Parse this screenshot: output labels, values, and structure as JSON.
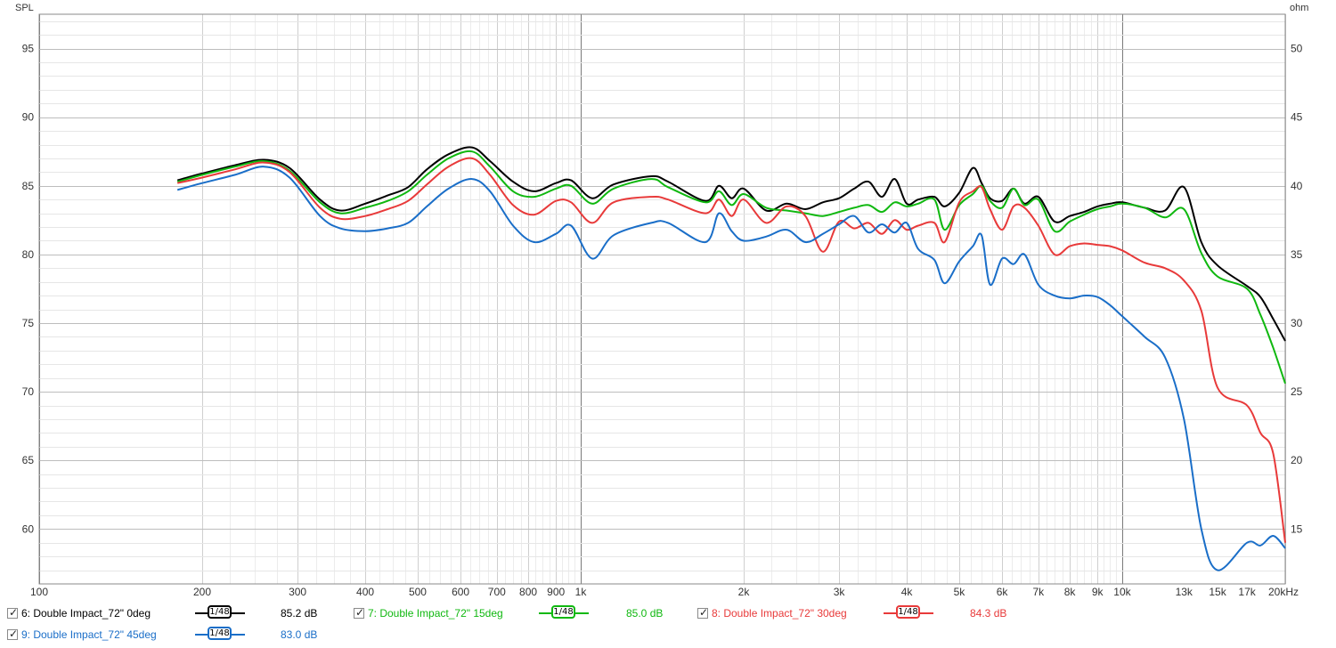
{
  "chart_data": {
    "type": "line",
    "y_left_label": "SPL",
    "y_right_label": "ohm",
    "x_scale": "log",
    "xlim": [
      100,
      20000
    ],
    "ylim_left": [
      56,
      97.5
    ],
    "ylim_right": [
      11,
      52.5
    ],
    "y_left_ticks": [
      60,
      65,
      70,
      75,
      80,
      85,
      90,
      95
    ],
    "y_right_ticks": [
      15,
      20,
      25,
      30,
      35,
      40,
      45,
      50
    ],
    "x_tick_labels": [
      {
        "v": 100,
        "t": "100"
      },
      {
        "v": 200,
        "t": "200"
      },
      {
        "v": 300,
        "t": "300"
      },
      {
        "v": 400,
        "t": "400"
      },
      {
        "v": 500,
        "t": "500"
      },
      {
        "v": 600,
        "t": "600"
      },
      {
        "v": 700,
        "t": "700"
      },
      {
        "v": 800,
        "t": "800"
      },
      {
        "v": 900,
        "t": "900"
      },
      {
        "v": 1000,
        "t": "1k"
      },
      {
        "v": 2000,
        "t": "2k"
      },
      {
        "v": 3000,
        "t": "3k"
      },
      {
        "v": 4000,
        "t": "4k"
      },
      {
        "v": 5000,
        "t": "5k"
      },
      {
        "v": 6000,
        "t": "6k"
      },
      {
        "v": 7000,
        "t": "7k"
      },
      {
        "v": 8000,
        "t": "8k"
      },
      {
        "v": 9000,
        "t": "9k"
      },
      {
        "v": 10000,
        "t": "10k"
      },
      {
        "v": 13000,
        "t": "13k"
      },
      {
        "v": 15000,
        "t": "15k"
      },
      {
        "v": 17000,
        "t": "17k"
      },
      {
        "v": 20000,
        "t": "20kHz"
      }
    ],
    "grid": true,
    "series": [
      {
        "name": "6: Double Impact_72\" 0deg",
        "color": "#000000",
        "x": [
          180,
          200,
          230,
          260,
          290,
          330,
          360,
          400,
          440,
          480,
          520,
          570,
          630,
          680,
          750,
          820,
          900,
          960,
          1050,
          1150,
          1350,
          1450,
          1700,
          1800,
          1900,
          2000,
          2200,
          2400,
          2600,
          2800,
          3000,
          3200,
          3400,
          3600,
          3800,
          4000,
          4200,
          4500,
          4700,
          5000,
          5300,
          5500,
          5700,
          6000,
          6300,
          6600,
          7000,
          7500,
          8000,
          8500,
          9000,
          9500,
          10000,
          11000,
          12000,
          13000,
          14000,
          15000,
          17000,
          18000,
          19000,
          20000
        ],
        "y": [
          85.4,
          85.9,
          86.5,
          86.9,
          86.3,
          84.0,
          83.2,
          83.7,
          84.3,
          84.9,
          86.2,
          87.3,
          87.8,
          86.8,
          85.3,
          84.6,
          85.2,
          85.4,
          84.1,
          85.1,
          85.7,
          85.3,
          83.9,
          85.0,
          84.1,
          84.8,
          83.2,
          83.7,
          83.3,
          83.8,
          84.1,
          84.8,
          85.3,
          84.2,
          85.5,
          83.7,
          84.0,
          84.2,
          83.5,
          84.5,
          86.3,
          85.2,
          84.1,
          83.9,
          84.8,
          83.7,
          84.2,
          82.4,
          82.8,
          83.1,
          83.5,
          83.7,
          83.8,
          83.4,
          83.2,
          84.9,
          80.9,
          79.2,
          77.7,
          76.9,
          75.3,
          73.7
        ]
      },
      {
        "name": "7: Double Impact_72\" 15deg",
        "color": "#10b810",
        "x": [
          180,
          200,
          230,
          260,
          290,
          330,
          360,
          400,
          440,
          480,
          520,
          570,
          630,
          680,
          750,
          820,
          900,
          960,
          1050,
          1150,
          1350,
          1450,
          1700,
          1800,
          1900,
          2000,
          2200,
          2400,
          2600,
          2800,
          3000,
          3200,
          3400,
          3600,
          3800,
          4000,
          4200,
          4500,
          4700,
          5000,
          5300,
          5500,
          5700,
          6000,
          6300,
          6600,
          7000,
          7500,
          8000,
          8500,
          9000,
          9500,
          10000,
          11000,
          12000,
          13000,
          14000,
          15000,
          17000,
          18000,
          19000,
          20000
        ],
        "y": [
          85.3,
          85.8,
          86.4,
          86.8,
          86.1,
          83.8,
          83.0,
          83.4,
          83.9,
          84.6,
          85.8,
          87.0,
          87.5,
          86.4,
          84.6,
          84.2,
          84.8,
          85.0,
          83.7,
          84.8,
          85.5,
          84.9,
          83.8,
          84.6,
          83.6,
          84.4,
          83.4,
          83.2,
          83.0,
          82.8,
          83.1,
          83.4,
          83.6,
          83.1,
          83.8,
          83.5,
          83.7,
          84.0,
          81.8,
          83.6,
          84.4,
          85.0,
          83.9,
          83.4,
          84.8,
          83.6,
          84.0,
          81.7,
          82.4,
          82.9,
          83.3,
          83.5,
          83.7,
          83.4,
          82.7,
          83.3,
          80.1,
          78.4,
          77.5,
          75.6,
          73.2,
          70.6
        ]
      },
      {
        "name": "8: Double Impact_72\" 30deg",
        "color": "#e83a3a",
        "x": [
          180,
          200,
          230,
          260,
          290,
          330,
          360,
          400,
          440,
          480,
          520,
          570,
          630,
          680,
          750,
          820,
          900,
          960,
          1050,
          1150,
          1350,
          1450,
          1700,
          1800,
          1900,
          2000,
          2200,
          2400,
          2600,
          2800,
          3000,
          3200,
          3400,
          3600,
          3800,
          4000,
          4200,
          4500,
          4700,
          5000,
          5300,
          5500,
          5700,
          6000,
          6300,
          6600,
          7000,
          7500,
          8000,
          8500,
          9000,
          9500,
          10000,
          11000,
          12000,
          13000,
          14000,
          15000,
          17000,
          18000,
          19000,
          20000
        ],
        "y": [
          85.2,
          85.6,
          86.2,
          86.7,
          86.0,
          83.4,
          82.6,
          82.8,
          83.3,
          83.9,
          85.1,
          86.4,
          87.0,
          85.8,
          83.6,
          82.9,
          83.9,
          83.8,
          82.3,
          83.8,
          84.2,
          84.0,
          83.0,
          84.0,
          82.8,
          84.0,
          82.3,
          83.5,
          82.8,
          80.2,
          82.4,
          81.9,
          82.3,
          81.5,
          82.5,
          81.8,
          82.1,
          82.3,
          80.9,
          83.8,
          84.6,
          84.9,
          83.3,
          81.8,
          83.5,
          83.4,
          82.1,
          80.0,
          80.6,
          80.8,
          80.7,
          80.6,
          80.3,
          79.4,
          79.0,
          78.1,
          75.9,
          70.3,
          69.0,
          67.0,
          65.5,
          59.0
        ]
      },
      {
        "name": "9: Double Impact_72\" 45deg",
        "color": "#1a6ec8",
        "x": [
          180,
          200,
          230,
          260,
          290,
          330,
          360,
          400,
          440,
          480,
          520,
          570,
          630,
          680,
          750,
          820,
          900,
          960,
          1050,
          1150,
          1350,
          1450,
          1700,
          1800,
          1900,
          2000,
          2200,
          2400,
          2600,
          2800,
          3000,
          3200,
          3400,
          3600,
          3800,
          4000,
          4200,
          4500,
          4700,
          5000,
          5300,
          5500,
          5700,
          6000,
          6300,
          6600,
          7000,
          7500,
          8000,
          8500,
          9000,
          9500,
          10000,
          11000,
          12000,
          13000,
          14000,
          15000,
          17000,
          18000,
          19000,
          20000
        ],
        "y": [
          84.7,
          85.2,
          85.8,
          86.4,
          85.6,
          82.8,
          81.9,
          81.7,
          81.9,
          82.3,
          83.5,
          84.8,
          85.5,
          84.6,
          82.1,
          80.9,
          81.5,
          82.1,
          79.7,
          81.4,
          82.3,
          82.3,
          80.9,
          83.0,
          81.7,
          81.0,
          81.3,
          81.8,
          80.9,
          81.5,
          82.2,
          82.8,
          81.6,
          82.2,
          81.6,
          82.3,
          80.4,
          79.6,
          77.9,
          79.5,
          80.6,
          81.4,
          77.8,
          79.7,
          79.3,
          80.0,
          77.8,
          77.0,
          76.8,
          77.0,
          76.9,
          76.3,
          75.5,
          74.0,
          72.5,
          68.0,
          60.0,
          57.0,
          59.0,
          58.8,
          59.5,
          58.6
        ]
      }
    ]
  },
  "legend": [
    {
      "checked": true,
      "label": "6: Double Impact_72\" 0deg",
      "smoothing": "1/48",
      "value": "85.2 dB",
      "color": "#000000"
    },
    {
      "checked": true,
      "label": "7: Double Impact_72\" 15deg",
      "smoothing": "1/48",
      "value": "85.0 dB",
      "color": "#10b810"
    },
    {
      "checked": true,
      "label": "8: Double Impact_72\" 30deg",
      "smoothing": "1/48",
      "value": "84.3 dB",
      "color": "#e83a3a"
    },
    {
      "checked": true,
      "label": "9: Double Impact_72\" 45deg",
      "smoothing": "1/48",
      "value": "83.0 dB",
      "color": "#1a6ec8"
    }
  ]
}
